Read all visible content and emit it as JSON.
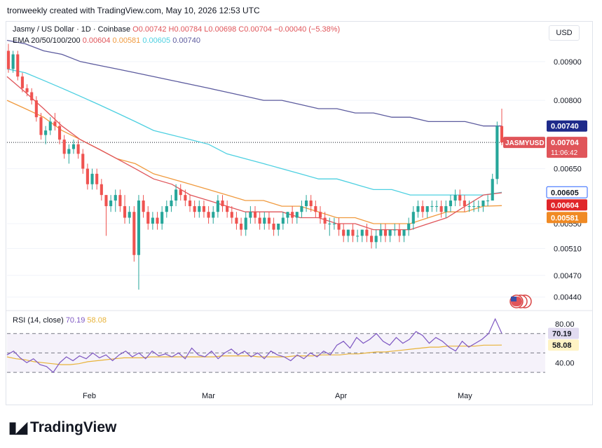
{
  "header": {
    "created_by": "tronweekly created with TradingView.com, May 10, 2026 12:53 UTC"
  },
  "legend": {
    "symbol": "Jasmy / US Dollar · 1D · Coinbase",
    "ohlc": "O0.00742 H0.00784 L0.00698 C0.00704 −0.00040 (−5.38%)",
    "ema_label": "EMA 20/50/100/200",
    "ema20": "0.00604",
    "ema50": "0.00581",
    "ema100": "0.00605",
    "ema200": "0.00740"
  },
  "currency_button": "USD",
  "price_axis": {
    "ticks": [
      "0.00900",
      "0.00800",
      "0.00650",
      "0.00550",
      "0.00510",
      "0.00470",
      "0.00440"
    ]
  },
  "price_tags": {
    "ema200": "0.00740",
    "last_symbol": "JASMYUSD",
    "last_price": "0.00704",
    "countdown": "11:06:42",
    "ema100": "0.00605",
    "ema20": "0.00604",
    "ema50": "0.00581"
  },
  "rsi": {
    "label": "RSI (14, close)",
    "value": "70.19",
    "ma": "58.08",
    "ticks": [
      "80.00",
      "40.00"
    ]
  },
  "time_axis": [
    "Feb",
    "Mar",
    "Apr",
    "May"
  ],
  "brand": "TradingView",
  "chart_data": {
    "type": "candlestick",
    "symbol": "Jasmy / US Dollar",
    "interval": "1D",
    "exchange": "Coinbase",
    "y_scale": "log",
    "ylim": [
      0.00425,
      0.00955
    ],
    "colors": {
      "up": "#26a69a",
      "down": "#ef5350",
      "ema20": "#e0555a",
      "ema50": "#f09a3e",
      "ema100": "#4dd0e1",
      "ema200": "#5c5b9e",
      "rsi": "#7e57c2",
      "rsi_ma": "#e8b339"
    },
    "candles": [
      [
        0.0093,
        0.0095,
        0.0087,
        0.0088
      ],
      [
        0.0088,
        0.0093,
        0.0087,
        0.0092
      ],
      [
        0.0092,
        0.0093,
        0.0085,
        0.0086
      ],
      [
        0.0086,
        0.0087,
        0.0082,
        0.0083
      ],
      [
        0.0083,
        0.0084,
        0.0081,
        0.0082
      ],
      [
        0.0082,
        0.0083,
        0.0079,
        0.008
      ],
      [
        0.008,
        0.0081,
        0.0075,
        0.0076
      ],
      [
        0.0076,
        0.0077,
        0.0071,
        0.0072
      ],
      [
        0.0072,
        0.0074,
        0.007,
        0.0073
      ],
      [
        0.0073,
        0.0076,
        0.0072,
        0.0075
      ],
      [
        0.0075,
        0.0077,
        0.0073,
        0.0074
      ],
      [
        0.0074,
        0.0075,
        0.007,
        0.0071
      ],
      [
        0.0071,
        0.0072,
        0.0067,
        0.0068
      ],
      [
        0.0068,
        0.007,
        0.0066,
        0.0069
      ],
      [
        0.0069,
        0.0071,
        0.0068,
        0.007
      ],
      [
        0.007,
        0.0071,
        0.0067,
        0.0068
      ],
      [
        0.0068,
        0.0069,
        0.0064,
        0.0065
      ],
      [
        0.0065,
        0.0066,
        0.0061,
        0.0062
      ],
      [
        0.0062,
        0.0065,
        0.0061,
        0.0064
      ],
      [
        0.0064,
        0.0065,
        0.0061,
        0.0062
      ],
      [
        0.0062,
        0.0063,
        0.0059,
        0.006
      ],
      [
        0.006,
        0.006,
        0.0053,
        0.0058
      ],
      [
        0.0058,
        0.006,
        0.0057,
        0.0059
      ],
      [
        0.0059,
        0.0061,
        0.0057,
        0.006
      ],
      [
        0.006,
        0.0061,
        0.0057,
        0.0058
      ],
      [
        0.0058,
        0.006,
        0.0055,
        0.0056
      ],
      [
        0.0056,
        0.0058,
        0.0055,
        0.0057
      ],
      [
        0.0057,
        0.0058,
        0.0049,
        0.005
      ],
      [
        0.005,
        0.006,
        0.0045,
        0.0059
      ],
      [
        0.0059,
        0.006,
        0.0056,
        0.0057
      ],
      [
        0.0057,
        0.0058,
        0.0054,
        0.0055
      ],
      [
        0.0055,
        0.0057,
        0.0054,
        0.0056
      ],
      [
        0.0056,
        0.0057,
        0.0054,
        0.0055
      ],
      [
        0.0055,
        0.0058,
        0.0054,
        0.0057
      ],
      [
        0.0057,
        0.0059,
        0.0056,
        0.0058
      ],
      [
        0.0058,
        0.006,
        0.0057,
        0.0059
      ],
      [
        0.0059,
        0.0062,
        0.0058,
        0.0061
      ],
      [
        0.0061,
        0.0062,
        0.0059,
        0.006
      ],
      [
        0.006,
        0.0061,
        0.0058,
        0.0059
      ],
      [
        0.0059,
        0.006,
        0.0057,
        0.0058
      ],
      [
        0.0058,
        0.0059,
        0.0056,
        0.0057
      ],
      [
        0.0057,
        0.0059,
        0.0056,
        0.0058
      ],
      [
        0.0058,
        0.0059,
        0.0056,
        0.0057
      ],
      [
        0.0057,
        0.0058,
        0.0055,
        0.0056
      ],
      [
        0.0056,
        0.0058,
        0.0055,
        0.0057
      ],
      [
        0.0057,
        0.006,
        0.0056,
        0.0059
      ],
      [
        0.0059,
        0.006,
        0.0057,
        0.0058
      ],
      [
        0.0058,
        0.0059,
        0.0056,
        0.0057
      ],
      [
        0.0057,
        0.0058,
        0.0055,
        0.0056
      ],
      [
        0.0056,
        0.0057,
        0.0054,
        0.0055
      ],
      [
        0.0055,
        0.0056,
        0.0053,
        0.0054
      ],
      [
        0.0054,
        0.0057,
        0.0053,
        0.0056
      ],
      [
        0.0056,
        0.0058,
        0.0055,
        0.0057
      ],
      [
        0.0057,
        0.0058,
        0.0055,
        0.0056
      ],
      [
        0.0056,
        0.0057,
        0.0054,
        0.0055
      ],
      [
        0.0055,
        0.0057,
        0.0054,
        0.0056
      ],
      [
        0.0056,
        0.0057,
        0.0054,
        0.0055
      ],
      [
        0.0055,
        0.0056,
        0.0053,
        0.0054
      ],
      [
        0.0054,
        0.0055,
        0.0053,
        0.0055
      ],
      [
        0.0055,
        0.0057,
        0.0054,
        0.0056
      ],
      [
        0.0056,
        0.0057,
        0.0055,
        0.0057
      ],
      [
        0.0057,
        0.0058,
        0.0055,
        0.0056
      ],
      [
        0.0056,
        0.0057,
        0.0055,
        0.0057
      ],
      [
        0.0057,
        0.0059,
        0.0056,
        0.0058
      ],
      [
        0.0058,
        0.006,
        0.0057,
        0.0059
      ],
      [
        0.0059,
        0.006,
        0.0057,
        0.0058
      ],
      [
        0.0058,
        0.0059,
        0.0056,
        0.0057
      ],
      [
        0.0057,
        0.0058,
        0.0055,
        0.0056
      ],
      [
        0.0056,
        0.0057,
        0.0054,
        0.0055
      ],
      [
        0.0055,
        0.0056,
        0.0053,
        0.0055
      ],
      [
        0.0055,
        0.0056,
        0.0054,
        0.0055
      ],
      [
        0.0055,
        0.0056,
        0.0053,
        0.0054
      ],
      [
        0.0054,
        0.0055,
        0.0052,
        0.0053
      ],
      [
        0.0053,
        0.0054,
        0.0052,
        0.0054
      ],
      [
        0.0054,
        0.0055,
        0.0052,
        0.0053
      ],
      [
        0.0053,
        0.0054,
        0.0052,
        0.0053
      ],
      [
        0.0053,
        0.0054,
        0.0052,
        0.0054
      ],
      [
        0.0054,
        0.0055,
        0.0052,
        0.0053
      ],
      [
        0.0053,
        0.0054,
        0.0051,
        0.0052
      ],
      [
        0.0052,
        0.0054,
        0.0051,
        0.0053
      ],
      [
        0.0053,
        0.0055,
        0.0052,
        0.0054
      ],
      [
        0.0054,
        0.0055,
        0.0052,
        0.0053
      ],
      [
        0.0053,
        0.0054,
        0.0052,
        0.0054
      ],
      [
        0.0054,
        0.0055,
        0.0053,
        0.0054
      ],
      [
        0.0054,
        0.0055,
        0.0052,
        0.0053
      ],
      [
        0.0053,
        0.0054,
        0.0052,
        0.0054
      ],
      [
        0.0054,
        0.0056,
        0.0053,
        0.0055
      ],
      [
        0.0055,
        0.0058,
        0.0054,
        0.0057
      ],
      [
        0.0057,
        0.0059,
        0.0056,
        0.0058
      ],
      [
        0.0058,
        0.0059,
        0.0056,
        0.0057
      ],
      [
        0.0057,
        0.0058,
        0.0056,
        0.0058
      ],
      [
        0.0058,
        0.0059,
        0.0057,
        0.0058
      ],
      [
        0.0058,
        0.0059,
        0.0057,
        0.0058
      ],
      [
        0.0058,
        0.0059,
        0.0056,
        0.0057
      ],
      [
        0.0057,
        0.0059,
        0.0056,
        0.0058
      ],
      [
        0.0058,
        0.006,
        0.0057,
        0.0059
      ],
      [
        0.0059,
        0.0061,
        0.0058,
        0.006
      ],
      [
        0.006,
        0.0061,
        0.0058,
        0.0059
      ],
      [
        0.0059,
        0.006,
        0.0057,
        0.0058
      ],
      [
        0.0058,
        0.0059,
        0.0057,
        0.0058
      ],
      [
        0.0058,
        0.0059,
        0.0057,
        0.0058
      ],
      [
        0.0058,
        0.0059,
        0.0057,
        0.0058
      ],
      [
        0.0058,
        0.0059,
        0.0057,
        0.0059
      ],
      [
        0.0059,
        0.006,
        0.0058,
        0.0059
      ],
      [
        0.0059,
        0.0064,
        0.0059,
        0.0063
      ],
      [
        0.0063,
        0.0075,
        0.0062,
        0.0074
      ],
      [
        0.0074,
        0.0078,
        0.00698,
        0.00704
      ]
    ],
    "ema20": [
      0.0086,
      0.0082,
      0.0078,
      0.0074,
      0.0071,
      0.0069,
      0.0067,
      0.0065,
      0.0063,
      0.0062,
      0.006,
      0.0059,
      0.0058,
      0.0057,
      0.0057,
      0.0057,
      0.0056,
      0.0056,
      0.0055,
      0.0055,
      0.0054,
      0.0054,
      0.0054,
      0.0055,
      0.0056,
      0.0058,
      0.006,
      0.00604
    ],
    "ema50": [
      0.008,
      0.0078,
      0.0076,
      0.0073,
      0.0071,
      0.0069,
      0.0067,
      0.0066,
      0.0064,
      0.0063,
      0.0062,
      0.0061,
      0.006,
      0.0059,
      0.0059,
      0.0058,
      0.0058,
      0.0057,
      0.0056,
      0.0056,
      0.0055,
      0.0055,
      0.0055,
      0.0056,
      0.0057,
      0.0057,
      0.0058,
      0.00581
    ],
    "ema100": [
      0.0088,
      0.0087,
      0.0085,
      0.0083,
      0.0081,
      0.0079,
      0.0077,
      0.0075,
      0.0073,
      0.0072,
      0.0071,
      0.007,
      0.0068,
      0.0067,
      0.0066,
      0.0065,
      0.0064,
      0.0063,
      0.0063,
      0.0062,
      0.0061,
      0.0061,
      0.006,
      0.006,
      0.006,
      0.006,
      0.006,
      0.00605
    ],
    "ema200": [
      0.0096,
      0.0095,
      0.0093,
      0.0092,
      0.009,
      0.0089,
      0.0088,
      0.0087,
      0.0086,
      0.0085,
      0.0084,
      0.0083,
      0.0082,
      0.0081,
      0.008,
      0.008,
      0.0079,
      0.0078,
      0.0078,
      0.0077,
      0.0077,
      0.0076,
      0.0076,
      0.0075,
      0.0075,
      0.0075,
      0.0074,
      0.0074
    ],
    "rsi_ylim": [
      20,
      90
    ],
    "rsi_bands": [
      70,
      50,
      30
    ],
    "rsi": [
      48,
      52,
      45,
      40,
      44,
      38,
      36,
      30,
      40,
      46,
      42,
      47,
      44,
      50,
      45,
      48,
      42,
      48,
      52,
      46,
      50,
      44,
      52,
      47,
      49,
      46,
      50,
      44,
      55,
      48,
      46,
      52,
      44,
      50,
      54,
      48,
      52,
      46,
      50,
      44,
      52,
      48,
      46,
      42,
      48,
      44,
      50,
      46,
      52,
      48,
      58,
      62,
      55,
      66,
      60,
      64,
      70,
      62,
      58,
      66,
      60,
      64,
      72,
      68,
      60,
      66,
      62,
      56,
      52,
      62,
      56,
      60,
      64,
      70,
      85,
      70.19
    ],
    "rsi_ma": [
      46,
      44,
      43,
      41,
      40,
      39,
      38,
      38,
      39,
      41,
      42,
      43,
      44,
      45,
      45,
      45,
      46,
      46,
      46,
      46,
      46,
      46,
      46,
      46,
      47,
      47,
      47,
      47,
      46,
      46,
      46,
      46,
      47,
      47,
      47,
      48,
      48,
      48,
      49,
      49,
      50,
      51,
      51,
      52,
      53,
      54,
      55,
      56,
      56,
      57,
      57,
      57,
      57,
      58,
      58,
      58.08
    ]
  }
}
